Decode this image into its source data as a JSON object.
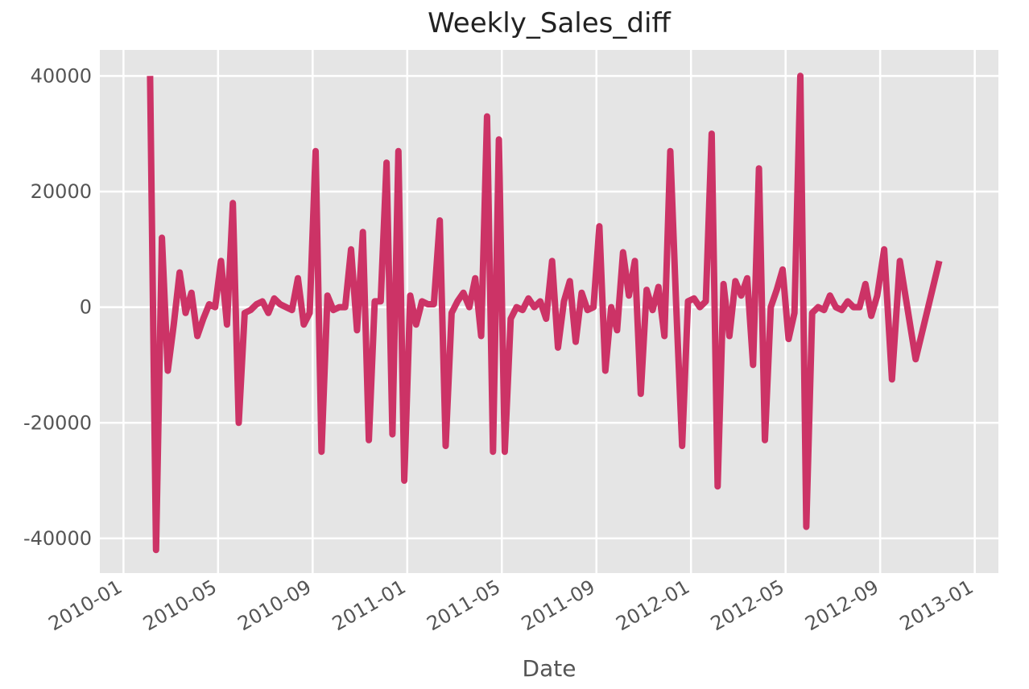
{
  "chart_data": {
    "type": "line",
    "title": "Weekly_Sales_diff",
    "x_label": "Date",
    "x": [
      "2010-02",
      "2010-02",
      "2010-02",
      "2010-02",
      "2010-03",
      "2010-03",
      "2010-03",
      "2010-03",
      "2010-04",
      "2010-04",
      "2010-04",
      "2010-04",
      "2010-05",
      "2010-05",
      "2010-05",
      "2010-05",
      "2010-06",
      "2010-06",
      "2010-06",
      "2010-06",
      "2010-07",
      "2010-07",
      "2010-07",
      "2010-07",
      "2010-08",
      "2010-08",
      "2010-08",
      "2010-08",
      "2010-09",
      "2010-09",
      "2010-09",
      "2010-09",
      "2010-10",
      "2010-10",
      "2010-10",
      "2010-10",
      "2010-11",
      "2010-11",
      "2010-11",
      "2010-11",
      "2010-12",
      "2010-12",
      "2010-12",
      "2010-12",
      "2011-01",
      "2011-01",
      "2011-01",
      "2011-01",
      "2011-02",
      "2011-02",
      "2011-02",
      "2011-02",
      "2011-03",
      "2011-03",
      "2011-03",
      "2011-03",
      "2011-04",
      "2011-04",
      "2011-04",
      "2011-04",
      "2011-05",
      "2011-05",
      "2011-05",
      "2011-05",
      "2011-06",
      "2011-06",
      "2011-06",
      "2011-06",
      "2011-07",
      "2011-07",
      "2011-07",
      "2011-07",
      "2011-08",
      "2011-08",
      "2011-08",
      "2011-08",
      "2011-09",
      "2011-09",
      "2011-09",
      "2011-09",
      "2011-10",
      "2011-10",
      "2011-10",
      "2011-10",
      "2011-11",
      "2011-11",
      "2011-11",
      "2011-11",
      "2011-12",
      "2011-12",
      "2011-12",
      "2011-12",
      "2012-01",
      "2012-01",
      "2012-01",
      "2012-01",
      "2012-02",
      "2012-02",
      "2012-02",
      "2012-02",
      "2012-03",
      "2012-03",
      "2012-03",
      "2012-03",
      "2012-04",
      "2012-04",
      "2012-04",
      "2012-04",
      "2012-05",
      "2012-05",
      "2012-05",
      "2012-05",
      "2012-06",
      "2012-06",
      "2012-06",
      "2012-06",
      "2012-07",
      "2012-07",
      "2012-07",
      "2012-07",
      "2012-08",
      "2012-08",
      "2012-08",
      "2012-08",
      "2012-09",
      "2012-09",
      "2012-09",
      "2012-10",
      "2012-11"
    ],
    "series": [
      {
        "name": "Weekly_Sales_diff",
        "color": "#cc3366",
        "values": [
          40000,
          -42000,
          12000,
          -11000,
          -3000,
          6000,
          -1000,
          2500,
          -5000,
          -2000,
          500,
          0,
          8000,
          -3000,
          18000,
          -20000,
          -1000,
          -500,
          500,
          1000,
          -1000,
          1500,
          500,
          0,
          -500,
          5000,
          -3000,
          -1000,
          27000,
          -25000,
          2000,
          -500,
          0,
          0,
          10000,
          -4000,
          13000,
          -23000,
          1000,
          1000,
          25000,
          -22000,
          27000,
          -30000,
          2000,
          -3000,
          1000,
          500,
          500,
          15000,
          -24000,
          -1000,
          1000,
          2500,
          0,
          5000,
          -5000,
          33000,
          -25000,
          29000,
          -25000,
          -2000,
          0,
          -500,
          1500,
          0,
          1000,
          -2000,
          8000,
          -7000,
          1000,
          4500,
          -6000,
          2500,
          -500,
          0,
          14000,
          -11000,
          0,
          -4000,
          9500,
          2000,
          8000,
          -15000,
          3000,
          -500,
          3500,
          -5000,
          27000,
          0,
          -24000,
          1000,
          1500,
          0,
          1000,
          30000,
          -31000,
          4000,
          -5000,
          4500,
          2000,
          5000,
          -10000,
          24000,
          -23000,
          0,
          3000,
          6500,
          -5500,
          -1000,
          40000,
          -38000,
          -1000,
          0,
          -500,
          2000,
          0,
          -500,
          1000,
          0,
          0,
          4000,
          -1500,
          2000,
          10000,
          -12500,
          8000,
          -9000,
          8000
        ]
      }
    ],
    "xlim": [
      "2009-12",
      "2013-02"
    ],
    "xticks": [
      "2010-01",
      "2010-05",
      "2010-09",
      "2011-01",
      "2011-05",
      "2011-09",
      "2012-01",
      "2012-05",
      "2012-09",
      "2013-01"
    ],
    "ylim": [
      -46000,
      44500
    ],
    "yticks": [
      -40000,
      -20000,
      0,
      20000,
      40000
    ],
    "grid": true
  }
}
